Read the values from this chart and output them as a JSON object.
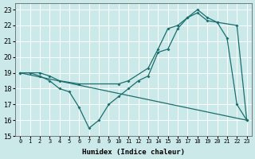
{
  "xlabel": "Humidex (Indice chaleur)",
  "xlim": [
    -0.5,
    23.5
  ],
  "ylim": [
    15,
    23.4
  ],
  "yticks": [
    15,
    16,
    17,
    18,
    19,
    20,
    21,
    22,
    23
  ],
  "xticks": [
    0,
    1,
    2,
    3,
    4,
    5,
    6,
    7,
    8,
    9,
    10,
    11,
    12,
    13,
    14,
    15,
    16,
    17,
    18,
    19,
    20,
    21,
    22,
    23
  ],
  "bg_color": "#cce9e9",
  "grid_color": "#ffffff",
  "line_color": "#1a6e6e",
  "line1_x": [
    0,
    1,
    2,
    3,
    4,
    5,
    6,
    7,
    8,
    9,
    10,
    11,
    12,
    13,
    14,
    15,
    16,
    17,
    18,
    19,
    20,
    21,
    22,
    23
  ],
  "line1_y": [
    19,
    19,
    18.8,
    18.5,
    18.0,
    17.8,
    16.8,
    15.5,
    16.0,
    17.0,
    17.5,
    18.0,
    18.5,
    18.8,
    20.3,
    20.5,
    21.8,
    22.5,
    22.8,
    22.3,
    22.2,
    21.2,
    17.0,
    16.0
  ],
  "line2_x": [
    0,
    2,
    3,
    4,
    6,
    10,
    11,
    13,
    14,
    15,
    16,
    17,
    18,
    19,
    20,
    22,
    23
  ],
  "line2_y": [
    19,
    19.0,
    18.8,
    18.5,
    18.3,
    18.3,
    18.5,
    19.3,
    20.5,
    21.8,
    22.0,
    22.5,
    23.0,
    22.5,
    22.2,
    22.0,
    16.0
  ]
}
